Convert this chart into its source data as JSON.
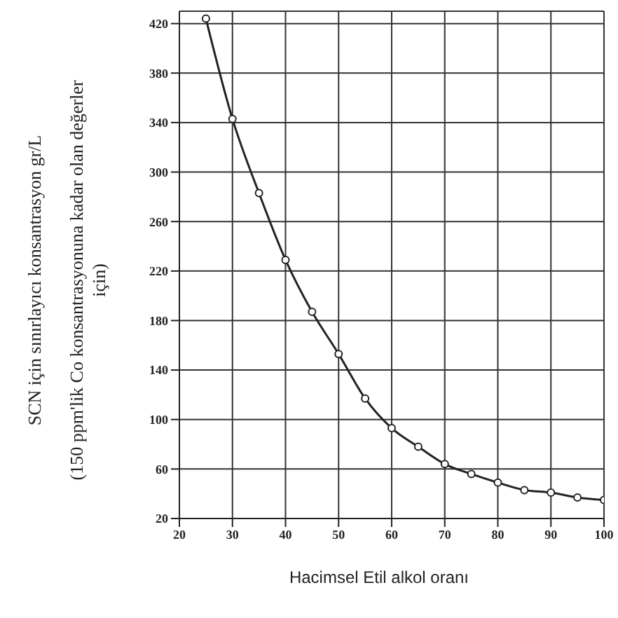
{
  "chart_data": {
    "type": "line",
    "xlabel": "Hacimsel Etil alkol oranı",
    "ylabel": "SCN için sınırlayıcı konsantrasyon gr/L\n(150 ppm'lik Co konsantrasyonuna kadar olan değerler için)",
    "x": [
      25,
      30,
      35,
      40,
      45,
      50,
      55,
      60,
      65,
      70,
      75,
      80,
      85,
      90,
      95,
      100
    ],
    "series": [
      {
        "color": "#222222",
        "values": [
          424,
          343,
          283,
          229,
          187,
          153,
          117,
          93,
          78,
          64,
          56,
          49,
          43,
          41,
          37,
          35
        ]
      }
    ],
    "xlim": [
      20,
      100
    ],
    "xticks": [
      20,
      30,
      40,
      50,
      60,
      70,
      80,
      90,
      100
    ],
    "ylim": [
      20,
      430
    ],
    "yticks": [
      20,
      60,
      100,
      140,
      180,
      220,
      260,
      300,
      340,
      380,
      420
    ],
    "grid": true,
    "marker": "circle",
    "line_style": "solid"
  }
}
